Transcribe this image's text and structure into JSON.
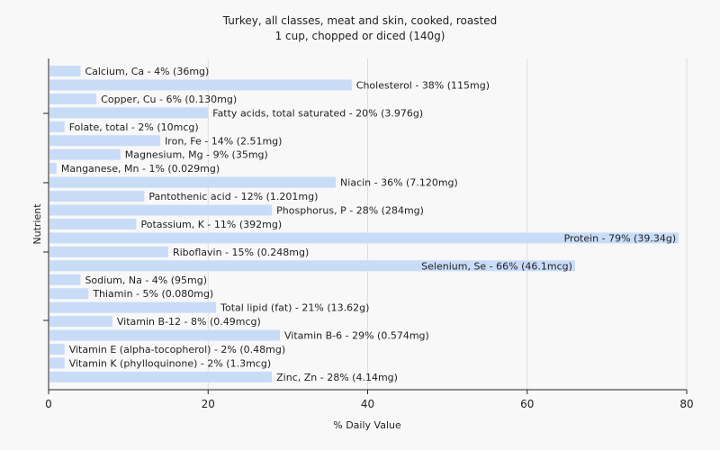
{
  "colors": {
    "background": "#f8f8f8",
    "bar": "#c8dcf8",
    "axis": "#222222",
    "grid": "#dddddd"
  },
  "chart_data": {
    "type": "bar",
    "orientation": "horizontal",
    "title": "Turkey, all classes, meat and skin, cooked, roasted",
    "subtitle": "1 cup, chopped or diced (140g)",
    "xlabel": "% Daily Value",
    "ylabel": "Nutrient",
    "xlim": [
      0,
      80
    ],
    "xticks": [
      0,
      20,
      40,
      60,
      80
    ],
    "grid": true,
    "categories": [
      "Calcium, Ca",
      "Cholesterol",
      "Copper, Cu",
      "Fatty acids, total saturated",
      "Folate, total",
      "Iron, Fe",
      "Magnesium, Mg",
      "Manganese, Mn",
      "Niacin",
      "Pantothenic acid",
      "Phosphorus, P",
      "Potassium, K",
      "Protein",
      "Riboflavin",
      "Selenium, Se",
      "Sodium, Na",
      "Thiamin",
      "Total lipid (fat)",
      "Vitamin B-12",
      "Vitamin B-6",
      "Vitamin E (alpha-tocopherol)",
      "Vitamin K (phylloquinone)",
      "Zinc, Zn"
    ],
    "values": [
      4,
      38,
      6,
      20,
      2,
      14,
      9,
      1,
      36,
      12,
      28,
      11,
      79,
      15,
      66,
      4,
      5,
      21,
      8,
      29,
      2,
      2,
      28
    ],
    "labels": [
      "Calcium, Ca - 4% (36mg)",
      "Cholesterol - 38% (115mg)",
      "Copper, Cu - 6% (0.130mg)",
      "Fatty acids, total saturated - 20% (3.976g)",
      "Folate, total - 2% (10mcg)",
      "Iron, Fe - 14% (2.51mg)",
      "Magnesium, Mg - 9% (35mg)",
      "Manganese, Mn - 1% (0.029mg)",
      "Niacin - 36% (7.120mg)",
      "Pantothenic acid - 12% (1.201mg)",
      "Phosphorus, P - 28% (284mg)",
      "Potassium, K - 11% (392mg)",
      "Protein - 79% (39.34g)",
      "Riboflavin - 15% (0.248mg)",
      "Selenium, Se - 66% (46.1mcg)",
      "Sodium, Na - 4% (95mg)",
      "Thiamin - 5% (0.080mg)",
      "Total lipid (fat) - 21% (13.62g)",
      "Vitamin B-12 - 8% (0.49mcg)",
      "Vitamin B-6 - 29% (0.574mg)",
      "Vitamin E (alpha-tocopherol) - 2% (0.48mg)",
      "Vitamin K (phylloquinone) - 2% (1.3mcg)",
      "Zinc, Zn - 28% (4.14mg)"
    ]
  }
}
